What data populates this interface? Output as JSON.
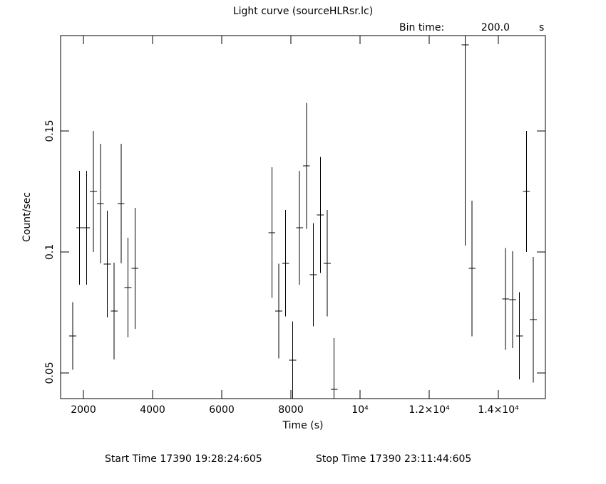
{
  "chart_data": {
    "type": "errorbar",
    "title": "Light curve (sourceHLRsr.lc)",
    "bin_time_label": "Bin time:",
    "bin_time": {
      "value": 200,
      "label": "200.0"
    },
    "bin_time_unit": "s",
    "x_label": "Time (s)",
    "y_label": "Count/sec",
    "start_time": "Start Time 17390 19:28:24:605",
    "stop_time": "Stop Time 17390 23:11:44:605",
    "color": "#000000",
    "xlim": [
      1340,
      15360
    ],
    "ylim": [
      0.0394,
      0.1894
    ],
    "xticks": [
      2000,
      4000,
      6000,
      8000,
      {
        "value": 10000,
        "label": "10⁴"
      },
      {
        "value": 12000,
        "label": "1.2×10⁴"
      },
      {
        "value": 14000,
        "label": "1.4×10⁴"
      }
    ],
    "yticks": [
      0.05,
      0.1,
      0.15
    ],
    "x": [
      1690,
      1890,
      2090,
      2290,
      2490,
      2690,
      2890,
      3090,
      3290,
      3490,
      7450,
      7650,
      7850,
      8050,
      8250,
      8450,
      8650,
      8850,
      9050,
      9250,
      13040,
      13240,
      14210,
      14410,
      14610,
      14810,
      15010
    ],
    "values": [
      0.0653,
      0.11,
      0.11,
      0.125,
      0.12,
      0.095,
      0.0756,
      0.12,
      0.0853,
      0.0932,
      0.108,
      0.0756,
      0.0953,
      0.0553,
      0.11,
      0.1356,
      0.0906,
      0.1153,
      0.0953,
      0.0432,
      0.1856,
      0.0932,
      0.0806,
      0.0803,
      0.0653,
      0.125,
      0.072
    ],
    "errors": [
      0.014,
      0.0235,
      0.0235,
      0.025,
      0.0247,
      0.022,
      0.02,
      0.0247,
      0.0206,
      0.025,
      0.027,
      0.0196,
      0.022,
      0.016,
      0.0235,
      0.026,
      0.0213,
      0.024,
      0.022,
      0.0212,
      0.083,
      0.028,
      0.021,
      0.02,
      0.018,
      0.025,
      0.026
    ]
  }
}
